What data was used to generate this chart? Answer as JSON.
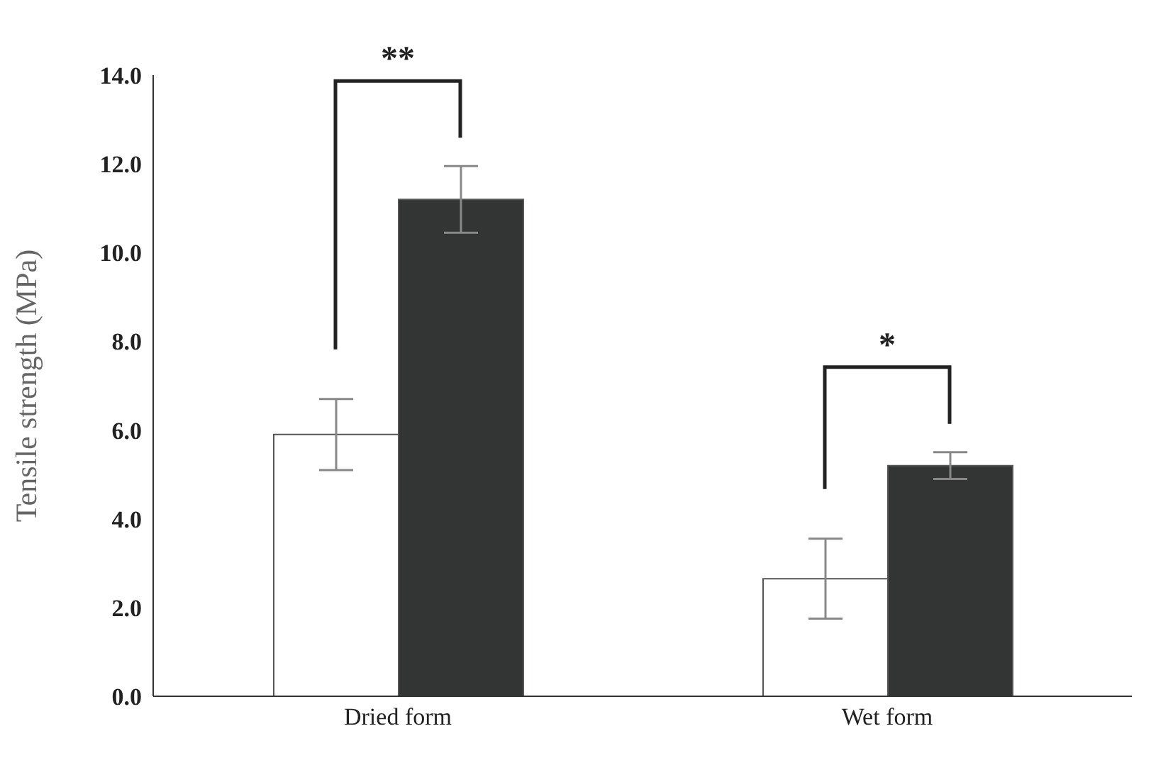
{
  "chart_data": {
    "type": "bar",
    "ylabel": "Tensile strength (MPa)",
    "categories": [
      "Dried form",
      "Wet form"
    ],
    "series": [
      {
        "color": "#ffffff",
        "values": [
          5.9,
          2.65
        ],
        "errors": [
          0.8,
          0.9
        ]
      },
      {
        "color": "#333535",
        "values": [
          11.2,
          5.2
        ],
        "errors": [
          0.75,
          0.3
        ]
      }
    ],
    "ylim": [
      0,
      14
    ],
    "yticks": [
      {
        "value": 0,
        "label": "0.0"
      },
      {
        "value": 2,
        "label": "2.0"
      },
      {
        "value": 4,
        "label": "4.0"
      },
      {
        "value": 6,
        "label": "6.0"
      },
      {
        "value": 8,
        "label": "8.0"
      },
      {
        "value": 10,
        "label": "10.0"
      },
      {
        "value": 12,
        "label": "12.0"
      },
      {
        "value": 14,
        "label": "14.0"
      }
    ],
    "annotations": [
      "**",
      "*"
    ],
    "grid": false,
    "legend": false
  }
}
